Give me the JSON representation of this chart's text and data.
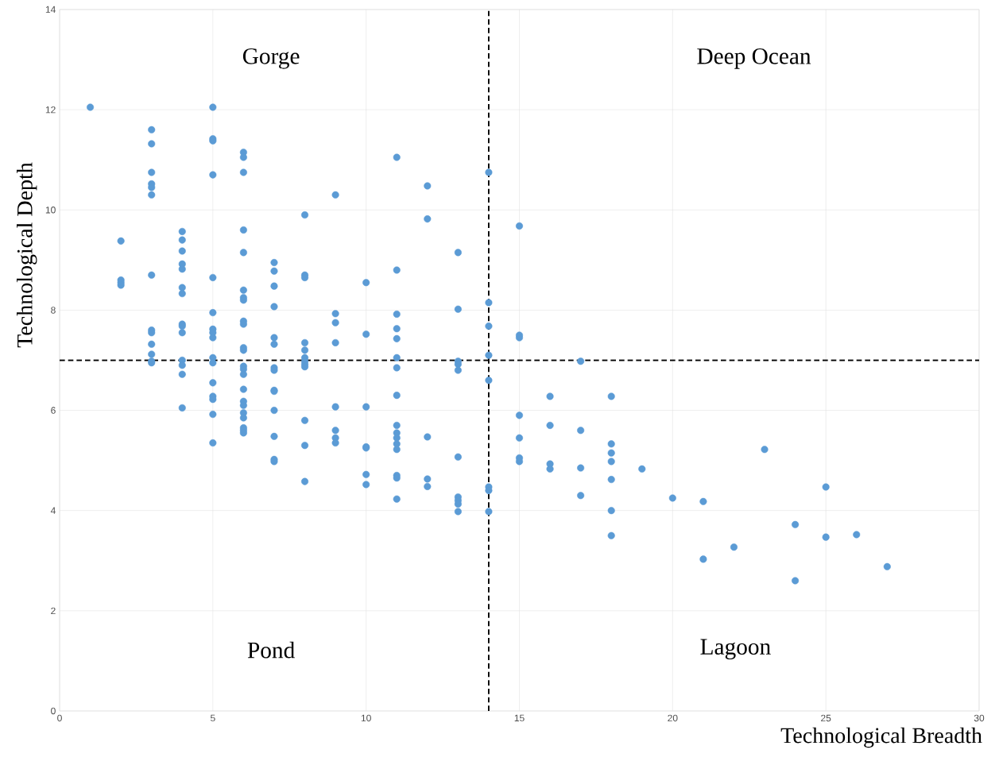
{
  "chart_data": {
    "type": "scatter",
    "xlabel": "Technological Breadth",
    "ylabel": "Technological Depth",
    "annotations": [
      "Gorge",
      "Deep Ocean",
      "Pond",
      "Lagoon"
    ],
    "xlim": [
      0,
      30
    ],
    "ylim": [
      0,
      14
    ],
    "xticks": [
      0,
      5,
      10,
      15,
      20,
      25,
      30
    ],
    "yticks": [
      0,
      2,
      4,
      6,
      8,
      10,
      12,
      14
    ],
    "grid": true,
    "marker": "circle",
    "ref_lines": [
      {
        "axis": "x",
        "value": 14,
        "color": "#000000",
        "line_style": "dashed"
      },
      {
        "axis": "y",
        "value": 7,
        "color": "#000000",
        "line_style": "dashed"
      }
    ],
    "series": [
      {
        "color": "#5b9bd5",
        "x": [
          1,
          2,
          2,
          2,
          2,
          3,
          3,
          3,
          3,
          3,
          3,
          3,
          3,
          3,
          3,
          3,
          3,
          3,
          4,
          4,
          4,
          4,
          4,
          4,
          4,
          4,
          4,
          4,
          4,
          4,
          4,
          4,
          5,
          5,
          5,
          5,
          5,
          5,
          5,
          5,
          5,
          5,
          5,
          5,
          5,
          5,
          5,
          5,
          6,
          6,
          6,
          6,
          6,
          6,
          6,
          6,
          6,
          6,
          6,
          6,
          6,
          6,
          6,
          6,
          6,
          6,
          6,
          6,
          6,
          6,
          6,
          7,
          7,
          7,
          7,
          7,
          7,
          7,
          7,
          7,
          7,
          7,
          7,
          7,
          7,
          8,
          8,
          8,
          8,
          8,
          8,
          8,
          8,
          8,
          8,
          8,
          8,
          9,
          9,
          9,
          9,
          9,
          9,
          9,
          9,
          10,
          10,
          10,
          10,
          10,
          10,
          10,
          11,
          11,
          11,
          11,
          11,
          11,
          11,
          11,
          11,
          11,
          11,
          11,
          11,
          11,
          11,
          11,
          12,
          12,
          12,
          12,
          12,
          13,
          13,
          13,
          13,
          13,
          13,
          13,
          13,
          13,
          13,
          14,
          14,
          14,
          14,
          14,
          14,
          14,
          14,
          15,
          15,
          15,
          15,
          15,
          15,
          15,
          16,
          16,
          16,
          16,
          17,
          17,
          17,
          17,
          18,
          18,
          18,
          18,
          18,
          18,
          18,
          19,
          20,
          21,
          21,
          22,
          23,
          24,
          24,
          25,
          25,
          26,
          27
        ],
        "values": [
          12.05,
          9.38,
          8.6,
          8.55,
          8.5,
          11.6,
          11.32,
          10.75,
          10.52,
          10.45,
          10.3,
          8.7,
          7.6,
          7.55,
          7.32,
          7.12,
          6.98,
          6.95,
          9.57,
          9.4,
          9.18,
          8.92,
          8.82,
          8.45,
          8.33,
          7.72,
          7.68,
          7.55,
          7.0,
          6.9,
          6.72,
          6.05,
          12.05,
          11.42,
          11.38,
          10.7,
          8.65,
          7.95,
          7.62,
          7.55,
          7.45,
          7.05,
          6.95,
          6.55,
          6.28,
          6.22,
          5.92,
          5.35,
          11.15,
          11.05,
          10.75,
          9.6,
          9.15,
          8.4,
          8.25,
          8.2,
          7.78,
          7.72,
          7.25,
          7.2,
          6.88,
          6.82,
          6.72,
          6.42,
          6.18,
          6.1,
          5.95,
          5.85,
          5.65,
          5.6,
          5.55,
          8.95,
          8.78,
          8.48,
          8.07,
          7.45,
          7.32,
          6.85,
          6.8,
          6.4,
          6.38,
          6.0,
          5.48,
          5.02,
          4.98,
          9.9,
          8.7,
          8.65,
          7.35,
          7.2,
          7.05,
          6.98,
          6.92,
          6.87,
          5.8,
          5.3,
          4.58,
          10.3,
          7.93,
          7.75,
          7.35,
          6.07,
          5.6,
          5.45,
          5.35,
          8.55,
          7.52,
          6.07,
          5.27,
          5.25,
          4.72,
          4.52,
          11.05,
          8.8,
          7.92,
          7.63,
          7.43,
          7.05,
          6.85,
          6.3,
          5.7,
          5.55,
          5.45,
          5.33,
          5.22,
          4.7,
          4.65,
          4.23,
          10.48,
          9.82,
          5.47,
          4.63,
          4.48,
          9.15,
          8.02,
          6.98,
          6.92,
          6.8,
          5.07,
          4.27,
          4.2,
          4.13,
          3.98,
          10.75,
          8.15,
          7.68,
          7.1,
          6.6,
          4.47,
          4.4,
          3.98,
          9.68,
          7.5,
          7.45,
          5.9,
          5.45,
          5.05,
          4.98,
          6.28,
          5.7,
          4.93,
          4.83,
          6.98,
          5.6,
          4.85,
          4.3,
          6.28,
          5.33,
          5.15,
          4.98,
          4.62,
          4.0,
          3.5,
          4.83,
          4.25,
          4.18,
          3.03,
          3.27,
          5.22,
          3.72,
          2.6,
          4.47,
          3.47,
          3.52,
          2.88
        ]
      }
    ]
  }
}
